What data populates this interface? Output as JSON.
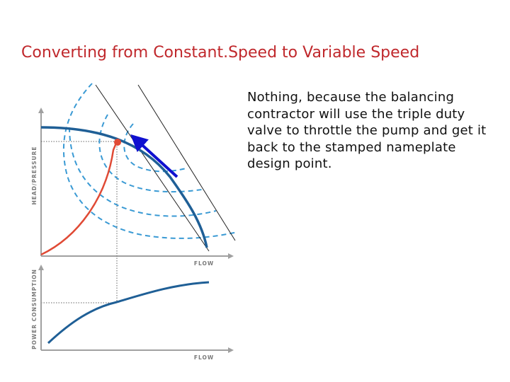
{
  "slide": {
    "title": "Converting from Constant.Speed to Variable Speed",
    "body_text": "Nothing, because the balancing contractor will use the triple duty valve to throttle the pump and get it back to the stamped nameplate design point."
  },
  "diagram": {
    "top_chart": {
      "y_axis_label": "HEAD/PRESSURE",
      "x_axis_label": "FLOW"
    },
    "bottom_chart": {
      "y_axis_label": "POWER CONSUMPTION",
      "x_axis_label": "FLOW"
    },
    "colors": {
      "pump_curve": "#1f5f96",
      "efficiency_islands": "#3a9ad4",
      "system_curve": "#e04a35",
      "operating_point": "#e04a35",
      "arrow": "#1010d0",
      "axis": "#a0a0a0",
      "system_lines": "#222222"
    }
  }
}
